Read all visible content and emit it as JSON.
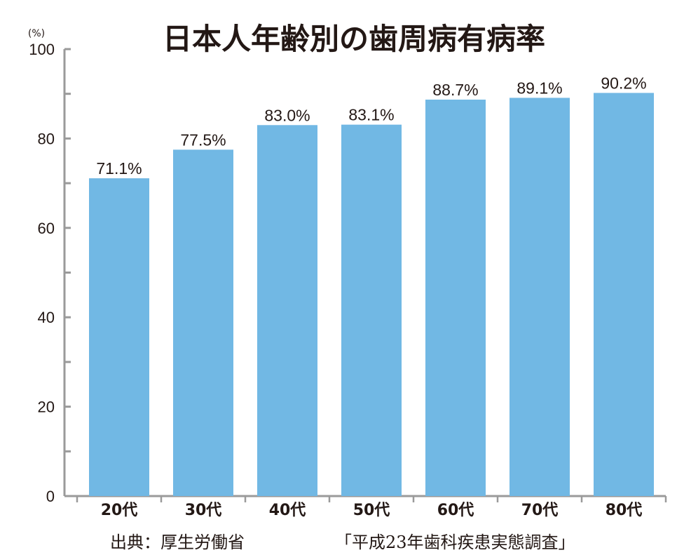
{
  "chart_data": {
    "type": "bar",
    "title": "日本人年齢別の歯周病有病率",
    "unit_label": "(%)",
    "categories": [
      "20代",
      "30代",
      "40代",
      "50代",
      "60代",
      "70代",
      "80代"
    ],
    "values": [
      71.1,
      77.5,
      83.0,
      83.1,
      88.7,
      89.1,
      90.2
    ],
    "data_labels": [
      "71.1%",
      "77.5%",
      "83.0%",
      "83.1%",
      "88.7%",
      "89.1%",
      "90.2%"
    ],
    "ylim": [
      0,
      100
    ],
    "yticks": [
      0,
      20,
      40,
      60,
      80,
      100
    ],
    "ytick_labels": [
      "0",
      "20",
      "40",
      "60",
      "80",
      "100"
    ],
    "bar_color": "#71b8e4",
    "axis_color": "#9a9a9a",
    "grid": false,
    "legend": "none"
  },
  "source": {
    "label": "出典：厚生労働省",
    "survey": "「平成23年歯科疾患実態調査」"
  }
}
